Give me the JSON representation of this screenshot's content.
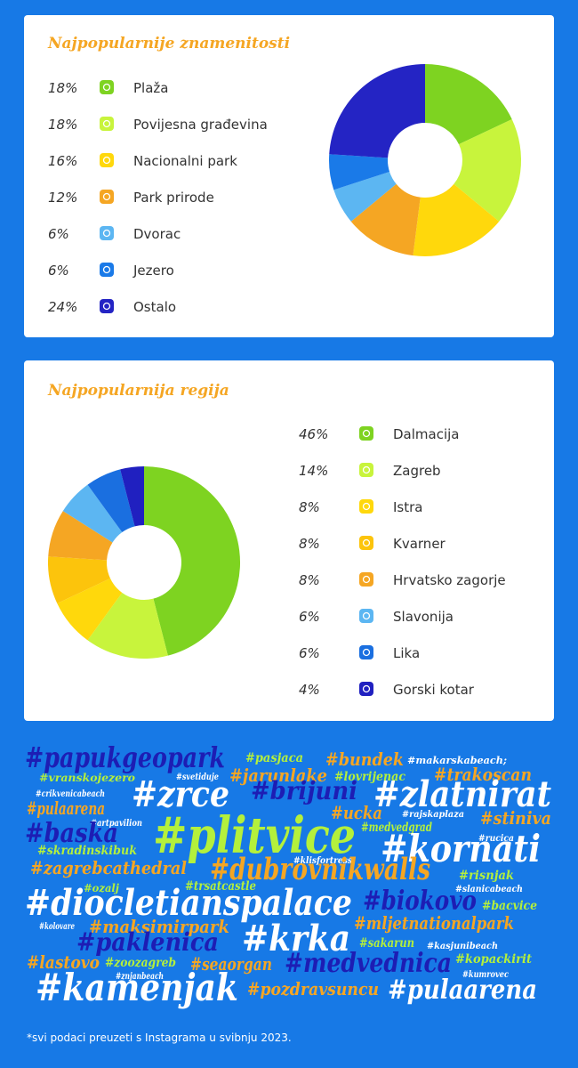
{
  "chart_data": [
    {
      "type": "donut",
      "title": "Najpopularnije znamenitosti",
      "categories": [
        "Plaža",
        "Povijesna građevina",
        "Nacionalni park",
        "Park prirode",
        "Dvorac",
        "Jezero",
        "Ostalo"
      ],
      "values": [
        18,
        18,
        16,
        12,
        6,
        6,
        24
      ],
      "value_labels": [
        "18%",
        "18%",
        "16%",
        "12%",
        "6%",
        "6%",
        "24%"
      ],
      "colors": [
        "#7ed321",
        "#c8f43c",
        "#ffd80c",
        "#f5a623",
        "#5cb6f2",
        "#1a7ae8",
        "#2424c4"
      ]
    },
    {
      "type": "donut",
      "title": "Najpopularnija regija",
      "categories": [
        "Dalmacija",
        "Zagreb",
        "Istra",
        "Kvarner",
        "Hrvatsko zagorje",
        "Slavonija",
        "Lika",
        "Gorski kotar"
      ],
      "values": [
        46,
        14,
        8,
        8,
        8,
        6,
        6,
        4
      ],
      "value_labels": [
        "46%",
        "14%",
        "8%",
        "8%",
        "8%",
        "6%",
        "6%",
        "4%"
      ],
      "colors": [
        "#7ed321",
        "#c8f43c",
        "#ffd80c",
        "#fcc40c",
        "#f5a623",
        "#5cb6f2",
        "#1a6fe0",
        "#2020c0"
      ]
    }
  ],
  "word_cloud": [
    "#papukgeopark",
    "#pasjaca",
    "#bundek",
    "#makarskabeach;",
    "#vranskojezero",
    "#svetiduje",
    "#jarunlake",
    "#lovrijenac",
    "#trakoscan",
    "#crikvenicabeach",
    "#zrce",
    "#brijuni",
    "#zlatnirat",
    "#pulaarena",
    "#artpavilion",
    "#ucka",
    "#rajskaplaza",
    "#stiniva",
    "#medvedgrad",
    "#baska",
    "#plitvice",
    "#rucica",
    "#kornati",
    "#skradinskibuk",
    "#zagrebcathedral",
    "#klisfortress",
    "#dubrovnikwalls",
    "#risnjak",
    "#ozalj",
    "#trsatcastle",
    "#slanicabeach",
    "#diocletianspalace",
    "#biokovo",
    "#bacvice",
    "#kolovare",
    "#maksimirpark",
    "#mljetnationalpark",
    "#paklenica",
    "#krka",
    "#sakarun",
    "#kasjunibeach",
    "#lastovo",
    "#zoozagreb",
    "#seaorgan",
    "#medvednica",
    "#kopackirit",
    "#znjanbeach",
    "#kumrovec",
    "#kamenjak",
    "#pozdravsuncu",
    "#pulaarena"
  ],
  "footnote": "*svi podaci preuzeti s Instagrama u svibnju 2023."
}
